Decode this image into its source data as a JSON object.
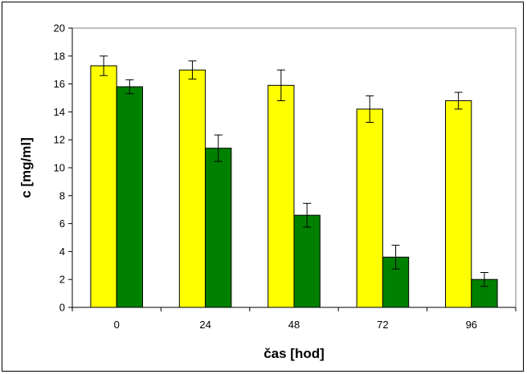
{
  "chart_data": {
    "type": "bar",
    "title": "",
    "xlabel": "čas [hod]",
    "ylabel": "c [mg/ml]",
    "categories": [
      "0",
      "24",
      "48",
      "72",
      "96"
    ],
    "ylim": [
      0,
      20
    ],
    "yticks": [
      0,
      2,
      4,
      6,
      8,
      10,
      12,
      14,
      16,
      18,
      20
    ],
    "grid": false,
    "legend": "none",
    "series": [
      {
        "color": "#ffff00",
        "values": [
          17.3,
          17.0,
          15.9,
          14.2,
          14.8
        ],
        "errors": [
          0.7,
          0.65,
          1.1,
          0.95,
          0.6
        ]
      },
      {
        "color": "#008000",
        "values": [
          15.8,
          11.4,
          6.6,
          3.6,
          2.0
        ],
        "errors": [
          0.5,
          0.95,
          0.85,
          0.85,
          0.5
        ]
      }
    ]
  }
}
